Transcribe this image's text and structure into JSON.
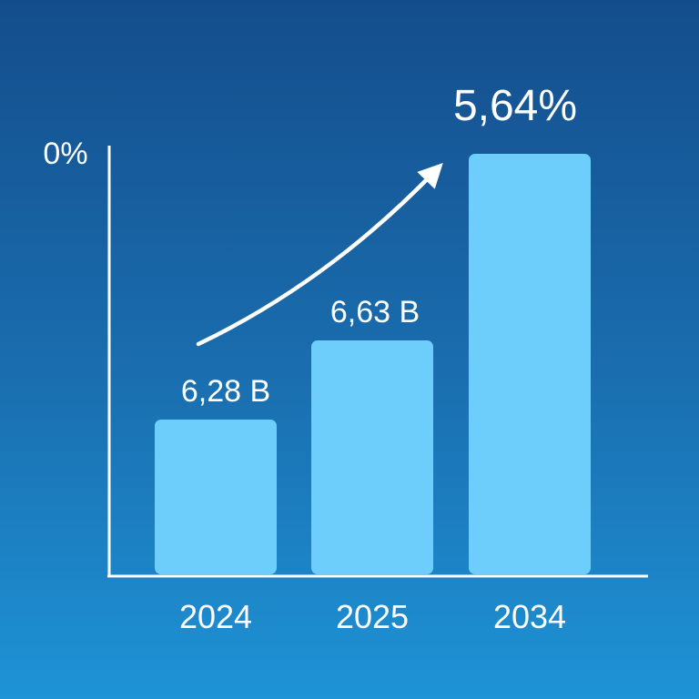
{
  "chart_data": {
    "type": "bar",
    "categories": [
      "2024",
      "2025",
      "2034"
    ],
    "values": [
      6.28,
      6.63,
      null
    ],
    "data_labels": [
      "6,28 B",
      "6,63 B",
      ""
    ],
    "y_axis_top_label": "0%",
    "annotation": "5,64%",
    "colors": {
      "background_top": "#144d8c",
      "background_bottom": "#1e93d6",
      "bar": "#6dcdfb",
      "axis": "#ffffff",
      "text": "#ffffff"
    }
  }
}
